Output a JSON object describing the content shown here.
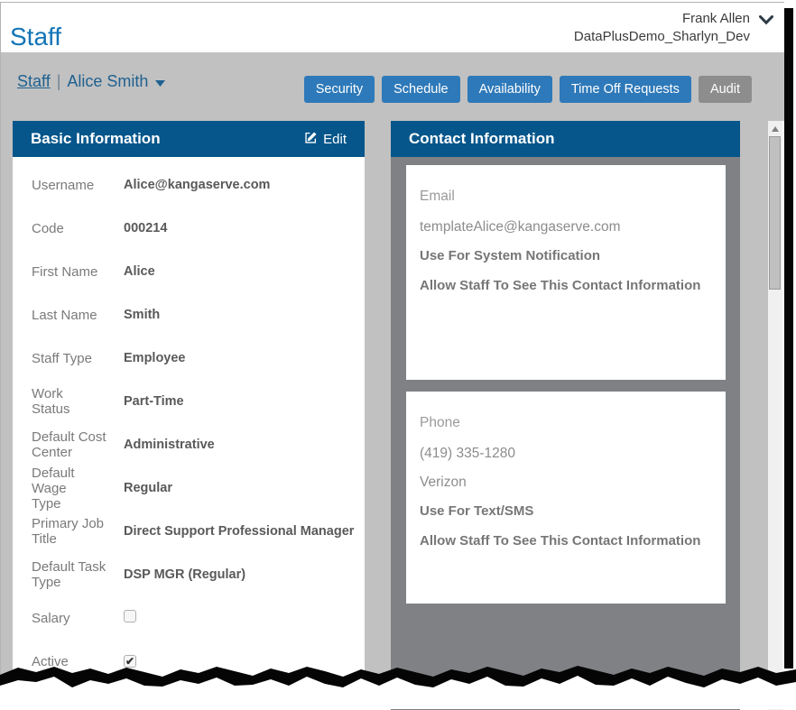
{
  "header": {
    "title": "Staff",
    "user_name": "Frank Allen",
    "environment": "DataPlusDemo_Sharlyn_Dev"
  },
  "breadcrumb": {
    "root": "Staff",
    "separator": "|",
    "current": "Alice Smith"
  },
  "nav_buttons": [
    {
      "label": "Security",
      "variant": "primary"
    },
    {
      "label": "Schedule",
      "variant": "primary"
    },
    {
      "label": "Availability",
      "variant": "primary"
    },
    {
      "label": "Time Off Requests",
      "variant": "primary"
    },
    {
      "label": "Audit",
      "variant": "muted"
    }
  ],
  "basic_info": {
    "header": "Basic Information",
    "edit_label": "Edit",
    "rows": [
      {
        "label": "Username",
        "type": "text",
        "value": "Alice@kangaserve.com"
      },
      {
        "label": "Code",
        "type": "text",
        "value": "000214"
      },
      {
        "label": "First Name",
        "type": "text",
        "value": "Alice"
      },
      {
        "label": "Last Name",
        "type": "text",
        "value": "Smith"
      },
      {
        "label": "Staff Type",
        "type": "text",
        "value": "Employee"
      },
      {
        "label": "Work\nStatus",
        "type": "text",
        "value": "Part-Time"
      },
      {
        "label": "Default Cost\nCenter",
        "type": "text",
        "value": "Administrative"
      },
      {
        "label": "Default Wage\nType",
        "type": "text",
        "value": "Regular"
      },
      {
        "label": "Primary Job\nTitle",
        "type": "text",
        "value": "Direct Support Professional Manager"
      },
      {
        "label": "Default Task\nType",
        "type": "text",
        "value": "DSP MGR (Regular)"
      },
      {
        "label": "Salary",
        "type": "checkbox",
        "checked": false
      },
      {
        "label": "Active",
        "type": "checkbox",
        "checked": true
      }
    ]
  },
  "contact_info": {
    "header": "Contact Information",
    "cards": [
      {
        "title": "Email",
        "values": [
          "templateAlice@kangaserve.com"
        ],
        "flags": [
          "Use For System Notification",
          "Allow Staff To See This Contact Information"
        ]
      },
      {
        "title": "Phone",
        "values": [
          "(419) 335-1280",
          "Verizon"
        ],
        "flags": [
          "Use For Text/SMS",
          "Allow Staff To See This Contact Information"
        ]
      }
    ]
  },
  "icons": {
    "user_menu": "chevron-down",
    "breadcrumb_caret": "caret-down",
    "edit": "pencil-square",
    "checked_glyph": "✔",
    "scrollbar_up": "triangle-up"
  },
  "colors": {
    "title_blue": "#1274b6",
    "link_blue": "#1f6191",
    "button_blue": "#2e79b9",
    "button_gray": "#8d8d8d",
    "panel_header_blue": "#06568b",
    "bar_gray": "#c1c1c1",
    "contact_body_gray": "#7f8184",
    "torn_edge_black": "#050505"
  }
}
